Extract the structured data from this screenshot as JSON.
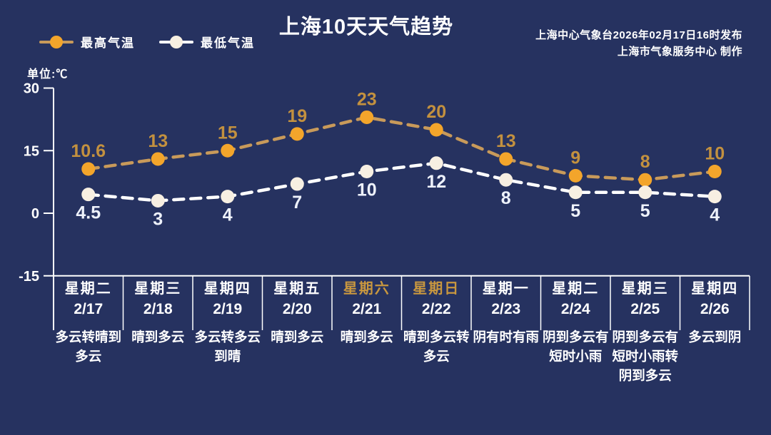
{
  "title": "上海10天天气趋势",
  "source": {
    "line1": "上海中心气象台2026年02月17日16时发布",
    "line2": "上海市气象服务中心  制作"
  },
  "colors": {
    "background": "#263260",
    "axis": "#ffffff",
    "title_text": "#ffffff",
    "weekend_highlight": "#c8973f"
  },
  "chart_data": {
    "type": "line",
    "title": "上海10天天气趋势",
    "categories": [
      "2/17",
      "2/18",
      "2/19",
      "2/20",
      "2/21",
      "2/22",
      "2/23",
      "2/24",
      "2/25",
      "2/26"
    ],
    "series": [
      {
        "name": "最高气温",
        "values": [
          10.6,
          13,
          15,
          19,
          23,
          20,
          13,
          9,
          8,
          10
        ],
        "line_color": "#c89a5a",
        "marker_color": "#f3a52b",
        "label_color": "#c3913f"
      },
      {
        "name": "最低气温",
        "values": [
          4.5,
          3,
          4,
          7,
          10,
          12,
          8,
          5,
          5,
          4
        ],
        "line_color": "#ffffff",
        "marker_color": "#f7efe2",
        "label_color": "#eef2fb"
      }
    ],
    "ylim": [
      -15,
      30
    ],
    "yticks": [
      30,
      15,
      0,
      -15
    ],
    "ylabel": "单位:℃",
    "grid": false,
    "line_style": "dashed",
    "legend_position": "top-left"
  },
  "forecast": [
    {
      "day": "星期二",
      "date": "2/17",
      "weather": "多云转晴到多云",
      "weekend": false
    },
    {
      "day": "星期三",
      "date": "2/18",
      "weather": "晴到多云",
      "weekend": false
    },
    {
      "day": "星期四",
      "date": "2/19",
      "weather": "多云转多云到晴",
      "weekend": false
    },
    {
      "day": "星期五",
      "date": "2/20",
      "weather": "晴到多云",
      "weekend": false
    },
    {
      "day": "星期六",
      "date": "2/21",
      "weather": "晴到多云",
      "weekend": true
    },
    {
      "day": "星期日",
      "date": "2/22",
      "weather": "晴到多云转多云",
      "weekend": true
    },
    {
      "day": "星期一",
      "date": "2/23",
      "weather": "阴有时有雨",
      "weekend": false
    },
    {
      "day": "星期二",
      "date": "2/24",
      "weather": "阴到多云有短时小雨",
      "weekend": false
    },
    {
      "day": "星期三",
      "date": "2/25",
      "weather": "阴到多云有短时小雨转阴到多云",
      "weekend": false
    },
    {
      "day": "星期四",
      "date": "2/26",
      "weather": "多云到阴",
      "weekend": false
    }
  ]
}
